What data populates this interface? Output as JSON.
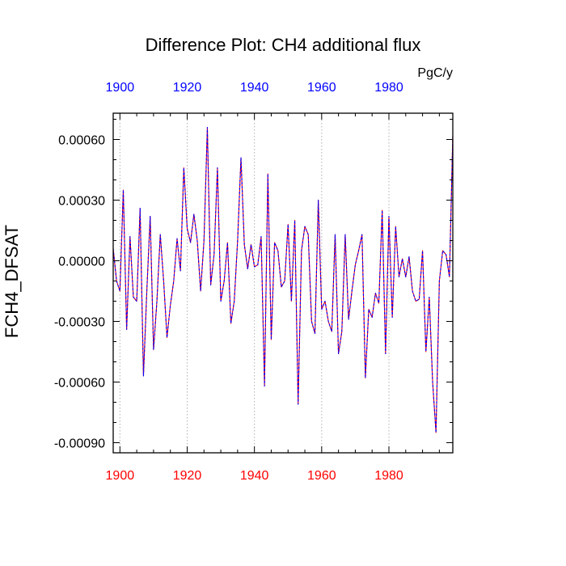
{
  "chart_data": {
    "type": "line",
    "title": "Difference Plot: CH4 additional flux",
    "units": "PgC/y",
    "ylabel": "FCH4_DFSAT",
    "xlabel": "",
    "xlim": [
      1898,
      1999
    ],
    "ylim": [
      -0.00095,
      0.00073
    ],
    "y_ticks": [
      0.0006,
      0.0003,
      0.0,
      -0.0003,
      -0.0006,
      -0.0009
    ],
    "y_tick_labels": [
      "0.00060",
      "0.00030",
      "0.00000",
      "-0.00030",
      "-0.00060",
      "-0.00090"
    ],
    "x_ticks": [
      1900,
      1920,
      1940,
      1960,
      1980
    ],
    "x_tick_labels": [
      "1900",
      "1920",
      "1940",
      "1960",
      "1980"
    ],
    "grid": "vertical dotted at x ticks",
    "colors": {
      "bottom_axis_labels": "#ff0000",
      "top_axis_labels": "#0000ff",
      "series_1": "#ff0000",
      "series_2": "#0000ff"
    },
    "series": [
      {
        "x": [
          1898,
          1899,
          1900,
          1901,
          1902,
          1903,
          1904,
          1905,
          1906,
          1907,
          1908,
          1909,
          1910,
          1911,
          1912,
          1913,
          1914,
          1915,
          1916,
          1917,
          1918,
          1919,
          1920,
          1921,
          1922,
          1923,
          1924,
          1925,
          1926,
          1927,
          1928,
          1929,
          1930,
          1931,
          1932,
          1933,
          1934,
          1935,
          1936,
          1937,
          1938,
          1939,
          1940,
          1941,
          1942,
          1943,
          1944,
          1945,
          1946,
          1947,
          1948,
          1949,
          1950,
          1951,
          1952,
          1953,
          1954,
          1955,
          1956,
          1957,
          1958,
          1959,
          1960,
          1961,
          1962,
          1963,
          1964,
          1965,
          1966,
          1967,
          1968,
          1969,
          1970,
          1971,
          1972,
          1973,
          1974,
          1975,
          1976,
          1977,
          1978,
          1979,
          1980,
          1981,
          1982,
          1983,
          1984,
          1985,
          1986,
          1987,
          1988,
          1989,
          1990,
          1991,
          1992,
          1993,
          1994,
          1995,
          1996,
          1997,
          1998,
          1999
        ],
        "values": [
          6e-05,
          -0.0001,
          -0.00015,
          0.00035,
          -0.00034,
          0.00012,
          -0.00018,
          -0.0002,
          0.00026,
          -0.00057,
          -0.00015,
          0.00022,
          -0.00044,
          -0.0002,
          0.00013,
          -0.0001,
          -0.00038,
          -0.00022,
          -0.0001,
          0.00011,
          -5e-05,
          0.00046,
          0.00016,
          9e-05,
          0.00023,
          0.0001,
          -0.00015,
          0.0001,
          0.00066,
          -0.00012,
          3e-05,
          0.00046,
          -0.0002,
          -0.0001,
          9e-05,
          -0.00031,
          -0.0002,
          0.0001,
          0.00051,
          8e-05,
          -4e-05,
          8e-05,
          -3e-05,
          -2e-05,
          0.00012,
          -0.00062,
          0.00043,
          -0.00039,
          9e-05,
          5e-05,
          -0.00013,
          -0.0001,
          0.00018,
          -0.0002,
          0.0002,
          -0.00071,
          5e-05,
          0.00017,
          0.00013,
          -0.0003,
          -0.00036,
          0.0003,
          -0.00024,
          -0.0002,
          -0.0003,
          -0.00035,
          0.00013,
          -0.00046,
          -0.00035,
          0.00013,
          -0.00029,
          -0.00015,
          -2e-05,
          5e-05,
          0.00013,
          -0.00058,
          -0.00024,
          -0.00028,
          -0.00016,
          -0.00021,
          0.00025,
          -0.00046,
          0.00022,
          -0.00028,
          0.00017,
          -8e-05,
          1e-05,
          -8e-05,
          2e-05,
          -0.00015,
          -0.0002,
          -0.00019,
          5e-05,
          -0.00045,
          -0.00018,
          -0.0006,
          -0.00085,
          -0.0001,
          5e-05,
          3e-05,
          -8e-05,
          0.00062
        ]
      }
    ]
  }
}
